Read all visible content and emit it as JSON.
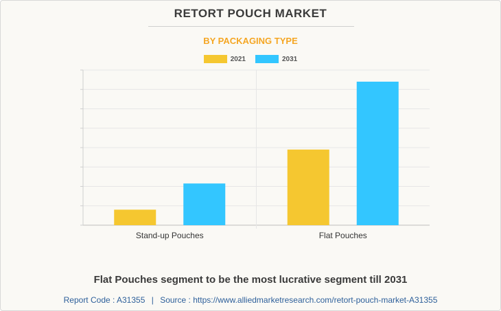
{
  "title": "RETORT POUCH MARKET",
  "subtitle": "BY PACKAGING TYPE",
  "headline": "Flat Pouches segment to be the most lucrative segment till 2031",
  "footer": {
    "report_code_label": "Report Code : A31355",
    "separator": "|",
    "source_label": "Source : https://www.alliedmarketresearch.com/retort-pouch-market-A31355"
  },
  "colors": {
    "series_2021": "#f5c730",
    "series_2031": "#33c6ff",
    "title": "#3a3a3a",
    "subtitle": "#f5a623",
    "source": "#2d5f9a"
  },
  "chart_data": {
    "type": "bar",
    "title": "RETORT POUCH MARKET",
    "subtitle": "BY PACKAGING TYPE",
    "categories": [
      "Stand-up Pouches",
      "Flat Pouches"
    ],
    "series": [
      {
        "name": "2021",
        "values": [
          0.8,
          3.9
        ]
      },
      {
        "name": "2031",
        "values": [
          2.15,
          7.4
        ]
      }
    ],
    "ylim": [
      0,
      8
    ],
    "grid": true,
    "legend": "top-center",
    "xlabel": "",
    "ylabel": ""
  }
}
